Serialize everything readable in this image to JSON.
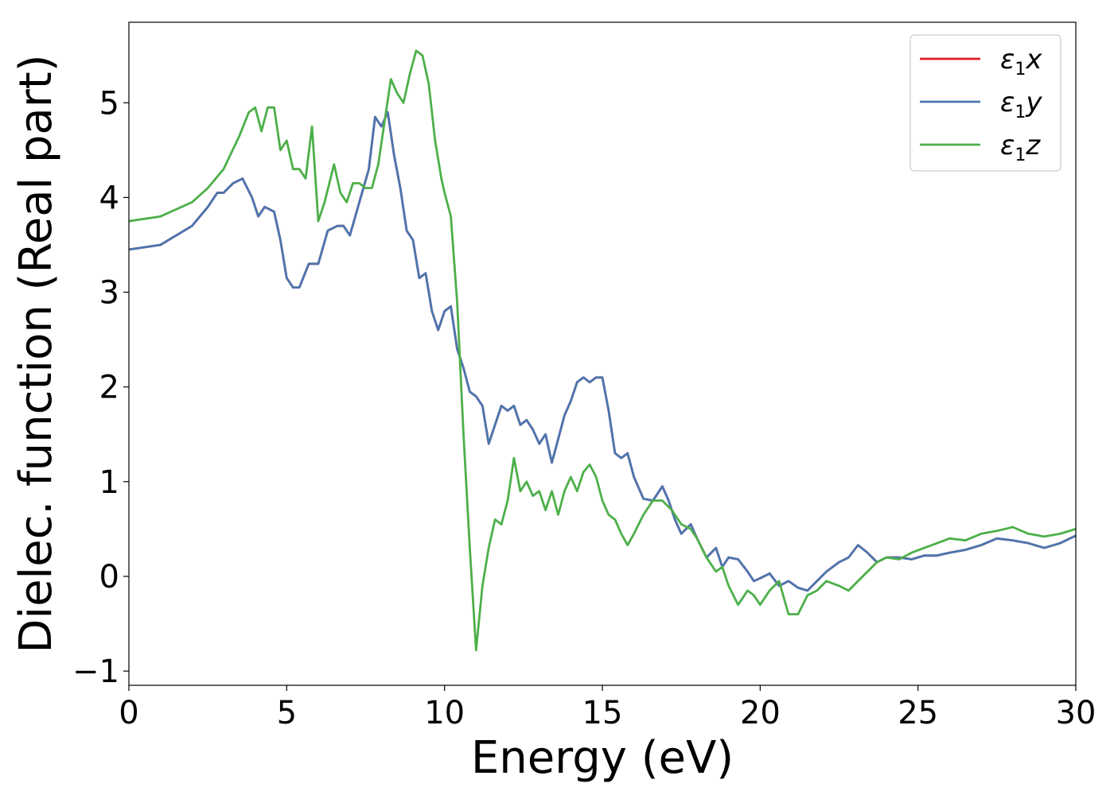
{
  "chart_data": {
    "type": "line",
    "xlabel": "Energy (eV)",
    "ylabel": "Dielec. function (Real part)",
    "xlim": [
      0,
      30
    ],
    "ylim": [
      -1.15,
      5.85
    ],
    "xticks": [
      0,
      5,
      10,
      15,
      20,
      25,
      30
    ],
    "xtick_labels": [
      "0",
      "5",
      "10",
      "15",
      "20",
      "25",
      "30"
    ],
    "yticks": [
      -1,
      0,
      1,
      2,
      3,
      4,
      5
    ],
    "ytick_labels": [
      "−1",
      "0",
      "1",
      "2",
      "3",
      "4",
      "5"
    ],
    "grid": false,
    "legend_position": "top-right",
    "series": [
      {
        "name": "ε₁x",
        "legend_base": "ε",
        "legend_sub": "1",
        "legend_var": "x",
        "color": "#e41a1c",
        "x": [
          0,
          1,
          2,
          2.5,
          2.8,
          3.0,
          3.3,
          3.6,
          3.9,
          4.1,
          4.3,
          4.6,
          4.8,
          5.0,
          5.2,
          5.4,
          5.7,
          6.0,
          6.3,
          6.6,
          6.8,
          7.0,
          7.3,
          7.6,
          7.8,
          8.0,
          8.2,
          8.4,
          8.6,
          8.8,
          9.0,
          9.2,
          9.4,
          9.6,
          9.8,
          10.0,
          10.2,
          10.4,
          10.6,
          10.8,
          11.0,
          11.2,
          11.4,
          11.6,
          11.8,
          12.0,
          12.2,
          12.4,
          12.6,
          12.8,
          13.0,
          13.2,
          13.4,
          13.6,
          13.8,
          14.0,
          14.2,
          14.4,
          14.6,
          14.8,
          15.0,
          15.2,
          15.4,
          15.6,
          15.8,
          16.0,
          16.3,
          16.6,
          16.9,
          17.1,
          17.3,
          17.5,
          17.8,
          18.0,
          18.3,
          18.6,
          18.8,
          19.0,
          19.3,
          19.6,
          19.8,
          20.0,
          20.3,
          20.6,
          20.9,
          21.2,
          21.5,
          21.8,
          22.1,
          22.5,
          22.8,
          23.1,
          23.4,
          23.7,
          24.0,
          24.4,
          24.8,
          25.2,
          25.6,
          26.0,
          26.5,
          27.0,
          27.5,
          28.0,
          28.5,
          29.0,
          29.5,
          30.0
        ],
        "values": [
          3.45,
          3.5,
          3.7,
          3.9,
          4.05,
          4.05,
          4.15,
          4.2,
          4.0,
          3.8,
          3.9,
          3.85,
          3.55,
          3.15,
          3.05,
          3.05,
          3.3,
          3.3,
          3.65,
          3.7,
          3.7,
          3.6,
          3.95,
          4.3,
          4.85,
          4.75,
          4.9,
          4.45,
          4.1,
          3.65,
          3.55,
          3.15,
          3.2,
          2.8,
          2.6,
          2.8,
          2.85,
          2.4,
          2.2,
          1.95,
          1.9,
          1.8,
          1.4,
          1.6,
          1.8,
          1.75,
          1.8,
          1.6,
          1.65,
          1.55,
          1.4,
          1.5,
          1.2,
          1.45,
          1.7,
          1.85,
          2.05,
          2.1,
          2.05,
          2.1,
          2.1,
          1.75,
          1.3,
          1.25,
          1.3,
          1.05,
          0.82,
          0.8,
          0.95,
          0.8,
          0.6,
          0.45,
          0.55,
          0.4,
          0.2,
          0.3,
          0.1,
          0.2,
          0.18,
          0.05,
          -0.05,
          -0.02,
          0.03,
          -0.1,
          -0.05,
          -0.12,
          -0.15,
          -0.05,
          0.05,
          0.15,
          0.2,
          0.33,
          0.25,
          0.15,
          0.2,
          0.2,
          0.18,
          0.22,
          0.22,
          0.25,
          0.28,
          0.33,
          0.4,
          0.38,
          0.35,
          0.3,
          0.35,
          0.43
        ]
      },
      {
        "name": "ε₁y",
        "legend_base": "ε",
        "legend_sub": "1",
        "legend_var": "y",
        "color": "#4a76b0",
        "x": [
          0,
          1,
          2,
          2.5,
          2.8,
          3.0,
          3.3,
          3.6,
          3.9,
          4.1,
          4.3,
          4.6,
          4.8,
          5.0,
          5.2,
          5.4,
          5.7,
          6.0,
          6.3,
          6.6,
          6.8,
          7.0,
          7.3,
          7.6,
          7.8,
          8.0,
          8.2,
          8.4,
          8.6,
          8.8,
          9.0,
          9.2,
          9.4,
          9.6,
          9.8,
          10.0,
          10.2,
          10.4,
          10.6,
          10.8,
          11.0,
          11.2,
          11.4,
          11.6,
          11.8,
          12.0,
          12.2,
          12.4,
          12.6,
          12.8,
          13.0,
          13.2,
          13.4,
          13.6,
          13.8,
          14.0,
          14.2,
          14.4,
          14.6,
          14.8,
          15.0,
          15.2,
          15.4,
          15.6,
          15.8,
          16.0,
          16.3,
          16.6,
          16.9,
          17.1,
          17.3,
          17.5,
          17.8,
          18.0,
          18.3,
          18.6,
          18.8,
          19.0,
          19.3,
          19.6,
          19.8,
          20.0,
          20.3,
          20.6,
          20.9,
          21.2,
          21.5,
          21.8,
          22.1,
          22.5,
          22.8,
          23.1,
          23.4,
          23.7,
          24.0,
          24.4,
          24.8,
          25.2,
          25.6,
          26.0,
          26.5,
          27.0,
          27.5,
          28.0,
          28.5,
          29.0,
          29.5,
          30.0
        ],
        "values": [
          3.45,
          3.5,
          3.7,
          3.9,
          4.05,
          4.05,
          4.15,
          4.2,
          4.0,
          3.8,
          3.9,
          3.85,
          3.55,
          3.15,
          3.05,
          3.05,
          3.3,
          3.3,
          3.65,
          3.7,
          3.7,
          3.6,
          3.95,
          4.3,
          4.85,
          4.75,
          4.9,
          4.45,
          4.1,
          3.65,
          3.55,
          3.15,
          3.2,
          2.8,
          2.6,
          2.8,
          2.85,
          2.4,
          2.2,
          1.95,
          1.9,
          1.8,
          1.4,
          1.6,
          1.8,
          1.75,
          1.8,
          1.6,
          1.65,
          1.55,
          1.4,
          1.5,
          1.2,
          1.45,
          1.7,
          1.85,
          2.05,
          2.1,
          2.05,
          2.1,
          2.1,
          1.75,
          1.3,
          1.25,
          1.3,
          1.05,
          0.82,
          0.8,
          0.95,
          0.8,
          0.6,
          0.45,
          0.55,
          0.4,
          0.2,
          0.3,
          0.1,
          0.2,
          0.18,
          0.05,
          -0.05,
          -0.02,
          0.03,
          -0.1,
          -0.05,
          -0.12,
          -0.15,
          -0.05,
          0.05,
          0.15,
          0.2,
          0.33,
          0.25,
          0.15,
          0.2,
          0.2,
          0.18,
          0.22,
          0.22,
          0.25,
          0.28,
          0.33,
          0.4,
          0.38,
          0.35,
          0.3,
          0.35,
          0.43
        ]
      },
      {
        "name": "ε₁z",
        "legend_base": "ε",
        "legend_sub": "1",
        "legend_var": "z",
        "color": "#4daf4a",
        "x": [
          0,
          1,
          2,
          2.5,
          3.0,
          3.5,
          3.8,
          4.0,
          4.2,
          4.4,
          4.6,
          4.8,
          5.0,
          5.2,
          5.4,
          5.6,
          5.8,
          6.0,
          6.2,
          6.5,
          6.7,
          6.9,
          7.1,
          7.3,
          7.5,
          7.7,
          7.9,
          8.1,
          8.3,
          8.5,
          8.7,
          8.9,
          9.1,
          9.3,
          9.5,
          9.7,
          9.9,
          10.0,
          10.2,
          10.4,
          10.6,
          10.8,
          11.0,
          11.2,
          11.4,
          11.6,
          11.8,
          12.0,
          12.2,
          12.4,
          12.6,
          12.8,
          13.0,
          13.2,
          13.4,
          13.6,
          13.8,
          14.0,
          14.2,
          14.4,
          14.6,
          14.8,
          15.0,
          15.2,
          15.4,
          15.6,
          15.8,
          16.0,
          16.3,
          16.6,
          16.9,
          17.2,
          17.5,
          17.8,
          18.0,
          18.3,
          18.6,
          18.8,
          19.0,
          19.3,
          19.6,
          19.8,
          20.0,
          20.3,
          20.6,
          20.9,
          21.2,
          21.5,
          21.8,
          22.1,
          22.5,
          22.8,
          23.1,
          23.4,
          23.7,
          24.0,
          24.4,
          24.8,
          25.2,
          25.6,
          26.0,
          26.5,
          27.0,
          27.5,
          28.0,
          28.5,
          29.0,
          29.5,
          30.0
        ],
        "values": [
          3.75,
          3.8,
          3.95,
          4.1,
          4.3,
          4.65,
          4.9,
          4.95,
          4.7,
          4.95,
          4.95,
          4.5,
          4.6,
          4.3,
          4.3,
          4.2,
          4.75,
          3.75,
          3.95,
          4.35,
          4.05,
          3.95,
          4.15,
          4.15,
          4.1,
          4.1,
          4.35,
          4.8,
          5.25,
          5.1,
          5.0,
          5.3,
          5.55,
          5.5,
          5.2,
          4.6,
          4.2,
          4.05,
          3.8,
          2.9,
          1.5,
          0.3,
          -0.78,
          -0.1,
          0.3,
          0.6,
          0.55,
          0.8,
          1.25,
          0.9,
          1.0,
          0.85,
          0.9,
          0.7,
          0.9,
          0.65,
          0.9,
          1.05,
          0.9,
          1.1,
          1.18,
          1.05,
          0.8,
          0.65,
          0.6,
          0.45,
          0.33,
          0.45,
          0.65,
          0.8,
          0.8,
          0.7,
          0.55,
          0.5,
          0.4,
          0.2,
          0.05,
          0.1,
          -0.1,
          -0.3,
          -0.15,
          -0.2,
          -0.3,
          -0.15,
          -0.05,
          -0.4,
          -0.4,
          -0.2,
          -0.15,
          -0.05,
          -0.1,
          -0.15,
          -0.05,
          0.05,
          0.15,
          0.2,
          0.18,
          0.25,
          0.3,
          0.35,
          0.4,
          0.38,
          0.45,
          0.48,
          0.52,
          0.45,
          0.42,
          0.45,
          0.5
        ]
      }
    ]
  }
}
